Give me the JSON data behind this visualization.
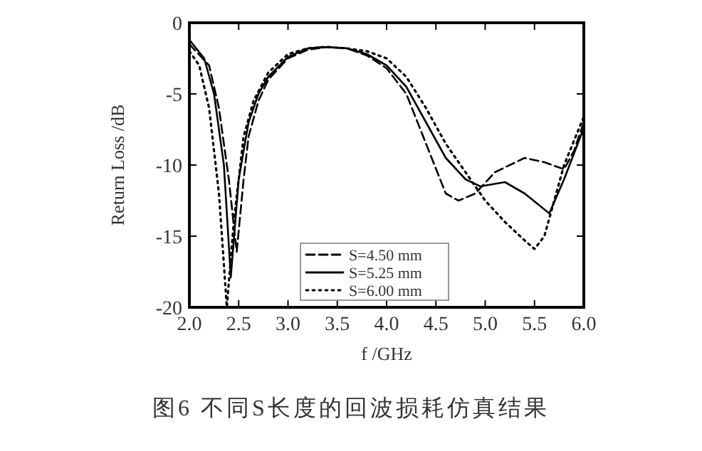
{
  "chart_data": {
    "type": "line",
    "xlabel": "f /GHz",
    "ylabel": "Return Loss /dB",
    "annotations": [
      "图6   不同S长度的回波损耗仿真结果"
    ],
    "xlim": [
      2.0,
      6.0
    ],
    "xticks": [
      {
        "value": 2,
        "label": "2.0"
      },
      {
        "value": 2.5,
        "label": "2.5"
      },
      {
        "value": 3,
        "label": "3.0"
      },
      {
        "value": 3.5,
        "label": "3.5"
      },
      {
        "value": 4,
        "label": "4.0"
      },
      {
        "value": 4.5,
        "label": "4.5"
      },
      {
        "value": 5,
        "label": "5.0"
      },
      {
        "value": 5.5,
        "label": "5.5"
      },
      {
        "value": 6,
        "label": "6.0"
      }
    ],
    "ylim": [
      -20,
      0
    ],
    "yticks": [
      -20,
      -15,
      -10,
      -5,
      0
    ],
    "grid": false,
    "legend": "bottom",
    "marker": "none",
    "series": [
      {
        "name": "S=4.50 mm",
        "color": "#000000",
        "line_style": "dashed",
        "x": [
          2.0,
          2.2,
          2.3,
          2.4,
          2.48,
          2.55,
          2.6,
          2.7,
          2.8,
          3.0,
          3.2,
          3.4,
          3.6,
          3.8,
          4.0,
          4.2,
          4.4,
          4.6,
          4.73,
          4.9,
          5.1,
          5.4,
          5.6,
          5.8,
          5.9,
          6.0
        ],
        "values": [
          -1.5,
          -3,
          -6,
          -11,
          -16.1,
          -11,
          -8,
          -5.5,
          -4,
          -2.5,
          -1.9,
          -1.7,
          -1.8,
          -2.3,
          -3.2,
          -5,
          -8.5,
          -12,
          -12.5,
          -12,
          -10.5,
          -9.5,
          -9.8,
          -10.3,
          -9,
          -7
        ]
      },
      {
        "name": "S=5.25 mm",
        "color": "#000000",
        "line_style": "solid",
        "x": [
          2.0,
          2.15,
          2.25,
          2.35,
          2.42,
          2.5,
          2.6,
          2.7,
          2.8,
          3.0,
          3.2,
          3.35,
          3.6,
          3.8,
          4.0,
          4.2,
          4.4,
          4.6,
          4.8,
          4.95,
          5.2,
          5.4,
          5.65,
          5.8,
          6.0
        ],
        "values": [
          -1.2,
          -2.5,
          -5,
          -10,
          -17.9,
          -11,
          -7,
          -5,
          -3.8,
          -2.4,
          -1.8,
          -1.7,
          -1.8,
          -2.2,
          -3,
          -4.5,
          -7,
          -9.5,
          -11,
          -11.5,
          -11.2,
          -12,
          -13.4,
          -11,
          -7.4
        ]
      },
      {
        "name": "S=6.00 mm",
        "color": "#000000",
        "line_style": "dotted",
        "x": [
          2.0,
          2.1,
          2.2,
          2.3,
          2.38,
          2.45,
          2.55,
          2.65,
          2.8,
          3.0,
          3.2,
          3.4,
          3.6,
          3.8,
          4.0,
          4.2,
          4.4,
          4.6,
          4.8,
          5.0,
          5.2,
          5.4,
          5.5,
          5.6,
          5.8,
          6.0
        ],
        "values": [
          -2,
          -3,
          -6,
          -12,
          -20,
          -14,
          -8,
          -5.5,
          -3.5,
          -2.2,
          -1.8,
          -1.7,
          -1.8,
          -2,
          -2.5,
          -3.8,
          -6,
          -8.5,
          -10.5,
          -12.5,
          -14,
          -15.3,
          -15.9,
          -15,
          -10,
          -6.6
        ]
      }
    ]
  }
}
